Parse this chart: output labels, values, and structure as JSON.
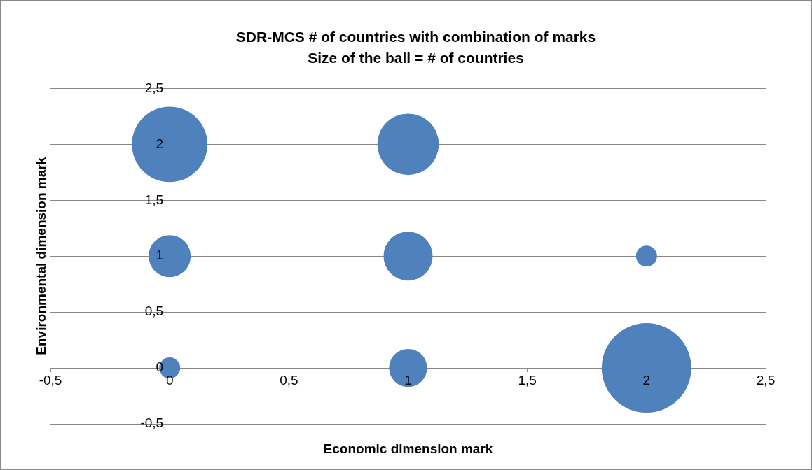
{
  "chart_data": {
    "type": "bubble",
    "title": "SDR-MCS # of countries with combination of marks",
    "subtitle": "Size of the ball = # of countries",
    "xlabel": "Economic dimension mark",
    "ylabel": "Environmental dimension mark",
    "x": [
      0,
      1,
      0,
      1,
      2,
      0,
      1,
      2
    ],
    "series": [
      {
        "color": "#4f81bd",
        "values": [
          2,
          2,
          1,
          1,
          1,
          0,
          0,
          0
        ],
        "sizes": [
          0.71,
          0.47,
          0.22,
          0.3,
          0.055,
          0.055,
          0.18,
          1
        ]
      }
    ],
    "xlim": [
      -0.5,
      2.5
    ],
    "xticks": [
      {
        "value": -0.5,
        "label": "-0,5"
      },
      0,
      {
        "value": 0.5,
        "label": "0,5"
      },
      1,
      {
        "value": 1.5,
        "label": "1,5"
      },
      2,
      {
        "value": 2.5,
        "label": "2,5"
      }
    ],
    "ylim": [
      -0.5,
      2.5
    ],
    "yticks": [
      {
        "value": -0.5,
        "label": "-0,5"
      },
      0,
      {
        "value": 0.5,
        "label": "0,5"
      },
      1,
      {
        "value": 1.5,
        "label": "1,5"
      },
      2,
      {
        "value": 2.5,
        "label": "2,5"
      }
    ],
    "grid": "y",
    "legend": false,
    "marker": "circle"
  }
}
